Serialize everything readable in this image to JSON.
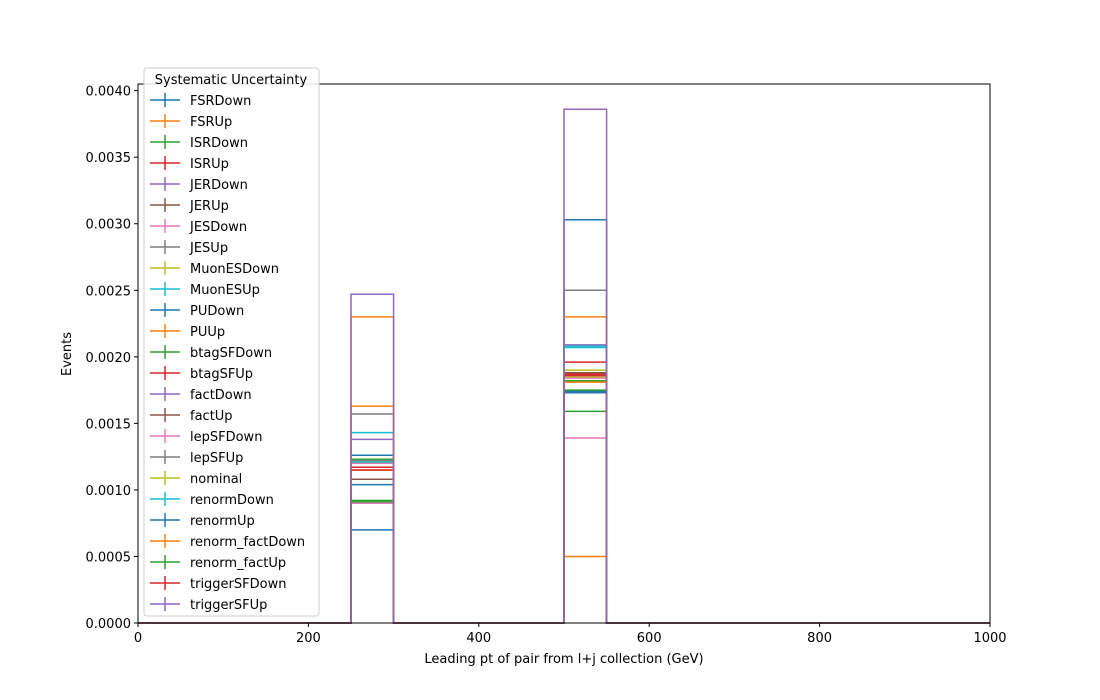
{
  "chart_data": {
    "type": "step histogram",
    "title": "",
    "xlabel": "Leading pt of pair from l+j collection (GeV)",
    "ylabel": "Events",
    "xlim": [
      0,
      1000
    ],
    "ylim": [
      0,
      0.00405
    ],
    "x_ticks": [
      "0",
      "200",
      "400",
      "600",
      "800",
      "1000"
    ],
    "x_tick_values": [
      0,
      200,
      400,
      600,
      800,
      1000
    ],
    "y_ticks": [
      "0.0000",
      "0.0005",
      "0.0010",
      "0.0015",
      "0.0020",
      "0.0025",
      "0.0030",
      "0.0035",
      "0.0040"
    ],
    "y_tick_values": [
      0,
      0.0005,
      0.001,
      0.0015,
      0.002,
      0.0025,
      0.003,
      0.0035,
      0.004
    ],
    "bin_edges": [
      0,
      250,
      300,
      500,
      550,
      1000
    ],
    "legend": {
      "title": "Systematic Uncertainty",
      "placement": "upper-left"
    },
    "series": [
      {
        "name": "FSRDown",
        "color": "#1f77b4",
        "values": [
          0,
          0.0007,
          0,
          0.00173,
          0
        ]
      },
      {
        "name": "FSRUp",
        "color": "#ff7f0e",
        "values": [
          0,
          0.00115,
          0,
          0.0005,
          0
        ]
      },
      {
        "name": "ISRDown",
        "color": "#2ca02c",
        "values": [
          0,
          0.00091,
          0,
          0.00159,
          0
        ]
      },
      {
        "name": "ISRUp",
        "color": "#d62728",
        "values": [
          0,
          0.00115,
          0,
          0.00196,
          0
        ]
      },
      {
        "name": "JERDown",
        "color": "#9467bd",
        "values": [
          0,
          0.00138,
          0,
          0.00209,
          0
        ]
      },
      {
        "name": "JERUp",
        "color": "#8c564b",
        "values": [
          0,
          0.00108,
          0,
          0.00188,
          0
        ]
      },
      {
        "name": "JESDown",
        "color": "#e377c2",
        "values": [
          0,
          0.0009,
          0,
          0.00139,
          0
        ]
      },
      {
        "name": "JESUp",
        "color": "#7f7f7f",
        "values": [
          0,
          0.00157,
          0,
          0.0025,
          0
        ]
      },
      {
        "name": "MuonESDown",
        "color": "#bcbd22",
        "values": [
          0,
          0.00122,
          0,
          0.0019,
          0
        ]
      },
      {
        "name": "MuonESUp",
        "color": "#17becf",
        "values": [
          0,
          0.00143,
          0,
          0.00208,
          0
        ]
      },
      {
        "name": "PUDown",
        "color": "#1f77b4",
        "values": [
          0,
          0.00126,
          0,
          0.00303,
          0
        ]
      },
      {
        "name": "PUUp",
        "color": "#ff7f0e",
        "values": [
          0,
          0.0023,
          0,
          0.0023,
          0
        ]
      },
      {
        "name": "btagSFDown",
        "color": "#2ca02c",
        "values": [
          0,
          0.00123,
          0,
          0.00182,
          0
        ]
      },
      {
        "name": "btagSFUp",
        "color": "#d62728",
        "values": [
          0,
          0.0012,
          0,
          0.00187,
          0
        ]
      },
      {
        "name": "factDown",
        "color": "#9467bd",
        "values": [
          0,
          0.0012,
          0,
          0.00174,
          0
        ]
      },
      {
        "name": "factUp",
        "color": "#8c564b",
        "values": [
          0,
          0.00121,
          0,
          0.00185,
          0
        ]
      },
      {
        "name": "lepSFDown",
        "color": "#e377c2",
        "values": [
          0,
          0.0012,
          0,
          0.00184,
          0
        ]
      },
      {
        "name": "lepSFUp",
        "color": "#7f7f7f",
        "values": [
          0,
          0.00122,
          0,
          0.00186,
          0
        ]
      },
      {
        "name": "nominal",
        "color": "#bcbd22",
        "values": [
          0,
          0.00121,
          0,
          0.00185,
          0
        ]
      },
      {
        "name": "renormDown",
        "color": "#17becf",
        "values": [
          0,
          0.00121,
          0,
          0.00207,
          0
        ]
      },
      {
        "name": "renormUp",
        "color": "#1f77b4",
        "values": [
          0,
          0.00104,
          0,
          0.00174,
          0
        ]
      },
      {
        "name": "renorm_factDown",
        "color": "#ff7f0e",
        "values": [
          0,
          0.00163,
          0,
          0.00181,
          0
        ]
      },
      {
        "name": "renorm_factUp",
        "color": "#2ca02c",
        "values": [
          0,
          0.00092,
          0,
          0.00175,
          0
        ]
      },
      {
        "name": "triggerSFDown",
        "color": "#d62728",
        "values": [
          0,
          0.00117,
          0,
          0.00186,
          0
        ]
      },
      {
        "name": "triggerSFUp",
        "color": "#9467bd",
        "values": [
          0,
          0.00247,
          0,
          0.00386,
          0
        ]
      }
    ]
  }
}
